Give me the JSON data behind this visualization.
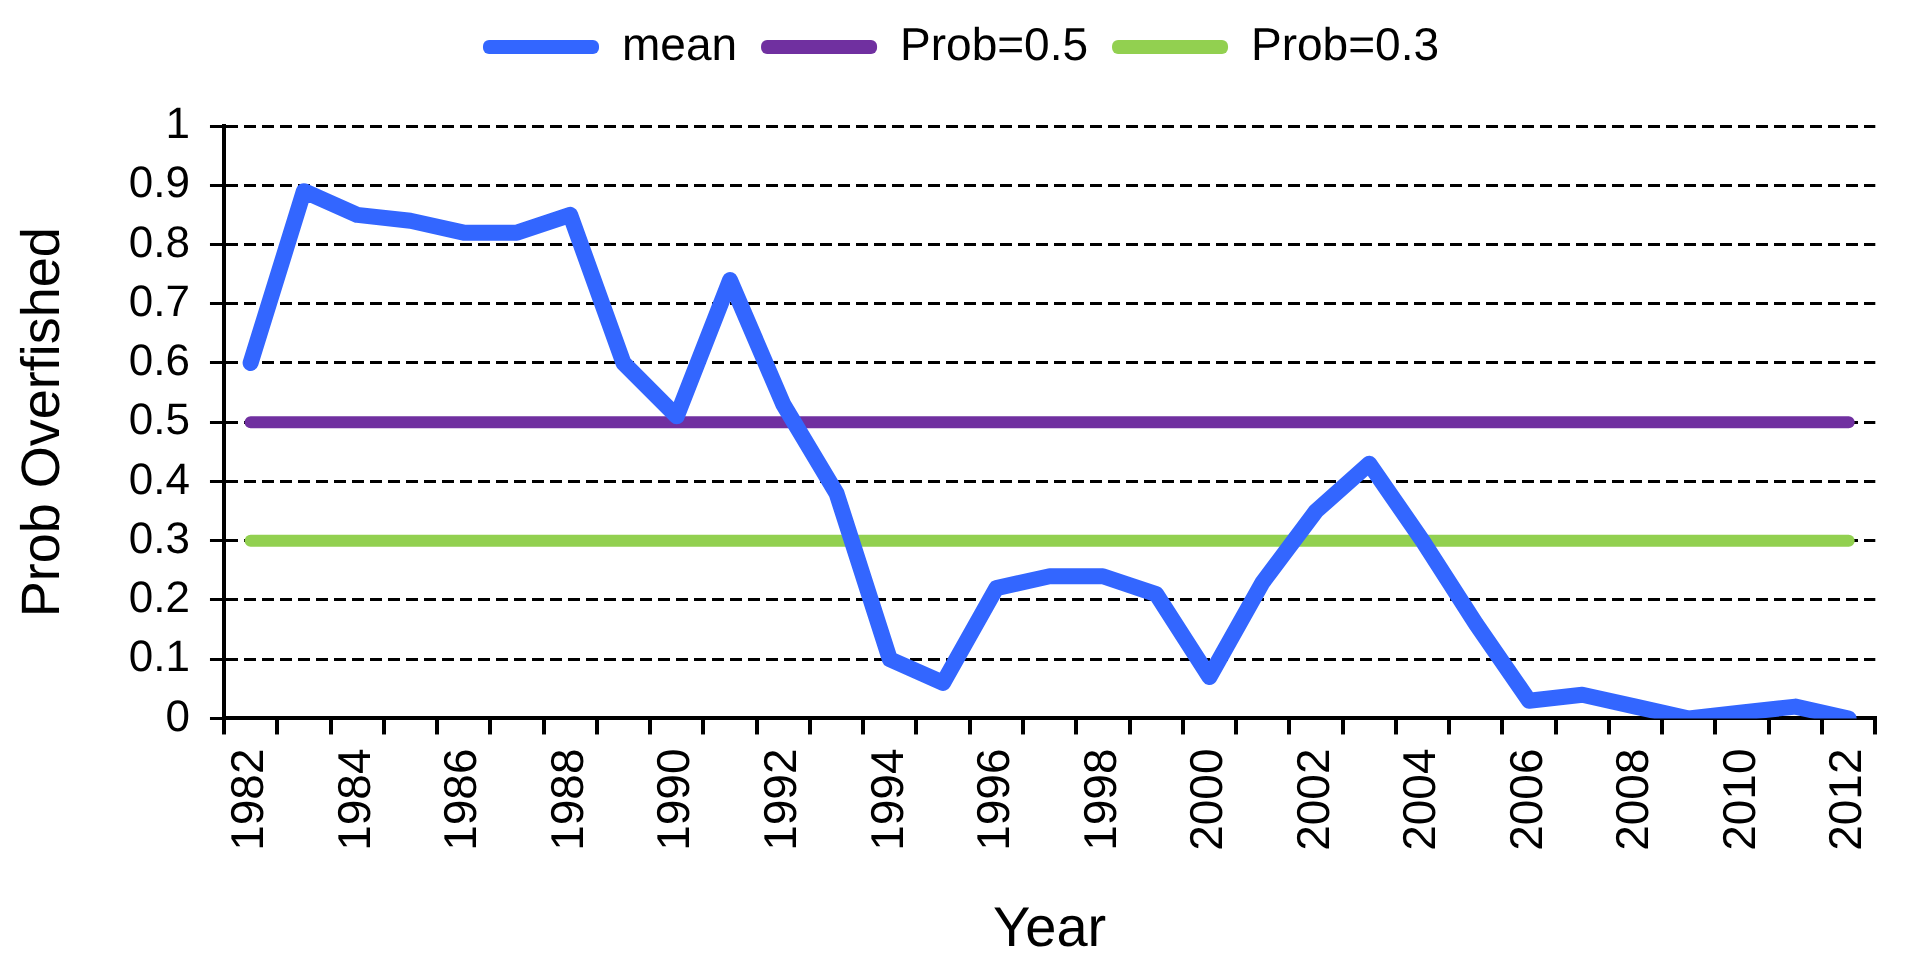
{
  "chart_data": {
    "type": "line",
    "xlabel": "Year",
    "ylabel": "Prob Overfished",
    "categories": [
      "1982",
      null,
      "1984",
      null,
      "1986",
      null,
      "1988",
      null,
      "1990",
      null,
      "1992",
      null,
      "1994",
      null,
      "1996",
      null,
      "1998",
      null,
      "2000",
      null,
      "2002",
      null,
      "2004",
      null,
      "2006",
      null,
      "2008",
      null,
      "2010",
      null,
      "2012"
    ],
    "series": [
      {
        "name": "mean",
        "color": "#3366ff",
        "values": [
          0.6,
          0.89,
          0.85,
          0.84,
          0.82,
          0.82,
          0.85,
          0.6,
          0.51,
          0.74,
          0.53,
          0.38,
          0.1,
          0.06,
          0.22,
          0.24,
          0.24,
          0.21,
          0.07,
          0.23,
          0.35,
          0.43,
          0.3,
          0.16,
          0.03,
          0.04,
          0.02,
          0,
          0.01,
          0.02,
          0
        ]
      },
      {
        "name": "Prob=0.5",
        "color": "#7030a0",
        "values": [
          0.5,
          0.5,
          0.5,
          0.5,
          0.5,
          0.5,
          0.5,
          0.5,
          0.5,
          0.5,
          0.5,
          0.5,
          0.5,
          0.5,
          0.5,
          0.5,
          0.5,
          0.5,
          0.5,
          0.5,
          0.5,
          0.5,
          0.5,
          0.5,
          0.5,
          0.5,
          0.5,
          0.5,
          0.5,
          0.5,
          0.5
        ]
      },
      {
        "name": "Prob=0.3",
        "color": "#92d050",
        "values": [
          0.3,
          0.3,
          0.3,
          0.3,
          0.3,
          0.3,
          0.3,
          0.3,
          0.3,
          0.3,
          0.3,
          0.3,
          0.3,
          0.3,
          0.3,
          0.3,
          0.3,
          0.3,
          0.3,
          0.3,
          0.3,
          0.3,
          0.3,
          0.3,
          0.3,
          0.3,
          0.3,
          0.3,
          0.3,
          0.3,
          0.3
        ]
      }
    ],
    "ylim": [
      0,
      1
    ],
    "yticks": [
      0,
      0.1,
      0.2,
      0.3,
      0.4,
      0.5,
      0.6,
      0.7,
      0.8,
      0.9,
      1
    ],
    "grid": "y",
    "legend": "top",
    "marker": "none",
    "line_style": "solid"
  }
}
